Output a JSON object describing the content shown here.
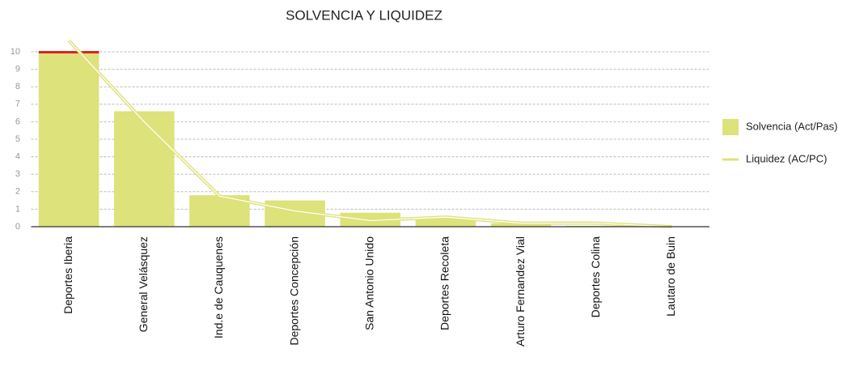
{
  "chart_data": {
    "type": "bar_line",
    "title": "SOLVENCIA Y LIQUIDEZ",
    "categories": [
      "Deportes Iberia",
      "General Velásquez",
      "Ind.e de Cauquenes",
      "Deportes Concepción",
      "San Antonio Unido",
      "Deportes Recoleta",
      "Arturo Fernandez Vial",
      "Deportes Colina",
      "Lautaro de Buin"
    ],
    "series": [
      {
        "name": "Solvencia (Act/Pas)",
        "kind": "bar",
        "color": "#dde27a",
        "values": [
          10.2,
          6.6,
          1.8,
          1.5,
          0.8,
          0.45,
          0.2,
          0.05,
          0
        ]
      },
      {
        "name": "Liquidez (AC/PC)",
        "kind": "line",
        "color": "#dde27a",
        "values": [
          10.65,
          6.0,
          1.75,
          0.9,
          0.35,
          0.55,
          0.2,
          0.2,
          0
        ]
      }
    ],
    "overflow_color": "#e02020",
    "ylim": [
      0,
      10
    ],
    "yticks": [
      0,
      1,
      2,
      3,
      4,
      5,
      6,
      7,
      8,
      9,
      10
    ],
    "grid": true,
    "legend": "right"
  }
}
